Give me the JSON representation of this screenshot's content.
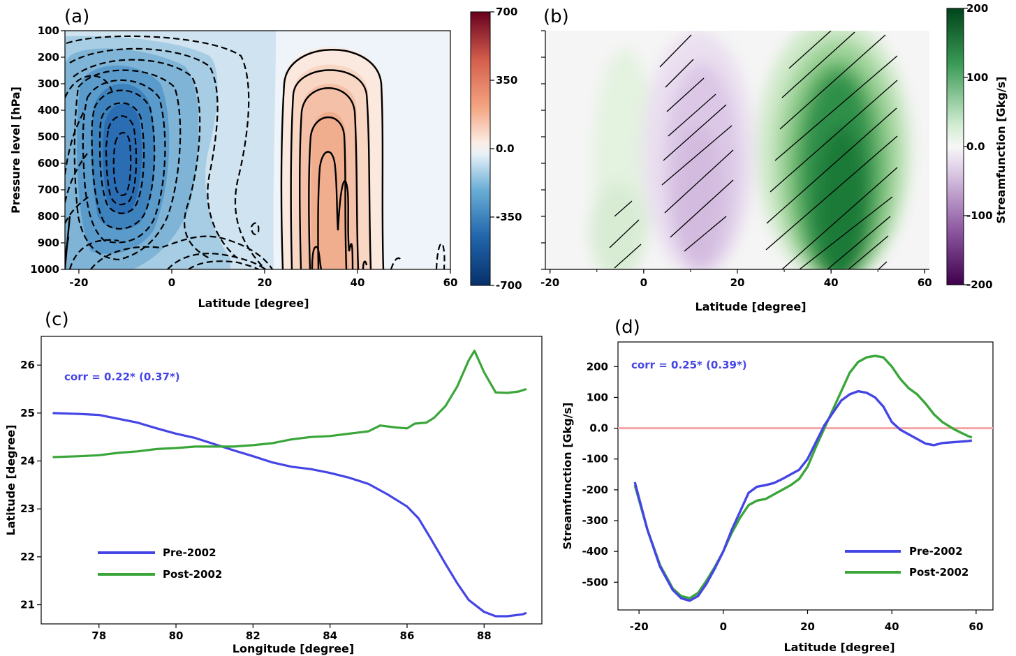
{
  "colors": {
    "pre": "#4545e6",
    "post": "#3aa63a",
    "zero_line": "#f4a6a6",
    "rdbu_neg": "#2a6db3",
    "rdbu_pos": "#e8a080",
    "prgn_pos": "#1f7a3a",
    "prgn_neg": "#7a3d8f"
  },
  "chart_data": [
    {
      "panel": "(a)",
      "type": "contour",
      "xlabel": "Latitude [degree]",
      "ylabel": "Pressure level [hPa]",
      "xlim": [
        -23,
        60
      ],
      "ylim": [
        1000,
        100
      ],
      "xticks": [
        "-20",
        "0",
        "20",
        "40",
        "60"
      ],
      "yticks": [
        "100",
        "200",
        "300",
        "400",
        "500",
        "600",
        "700",
        "800",
        "900",
        "1000"
      ],
      "colorbar": {
        "cmap": "RdBu_r",
        "range": [
          -700,
          700
        ],
        "ticks": [
          "700",
          "350",
          "0.0",
          "-350",
          "-700"
        ],
        "label": ""
      },
      "features": [
        {
          "sign": "negative",
          "center_lat": -9,
          "center_p": 600,
          "min_value": -600,
          "line_style": "dashed"
        },
        {
          "sign": "positive",
          "center_lat": 36,
          "center_p": 650,
          "max_value": 200,
          "line_style": "solid"
        }
      ]
    },
    {
      "panel": "(b)",
      "type": "contour",
      "xlabel": "Latitude [degree]",
      "ylabel": "",
      "xlim": [
        -21,
        61
      ],
      "ylim": [
        1000,
        100
      ],
      "xticks": [
        "-20",
        "0",
        "20",
        "40",
        "60"
      ],
      "colorbar": {
        "cmap": "PRGn",
        "range": [
          -200,
          200
        ],
        "ticks": [
          "200",
          "100",
          "0.0",
          "-100",
          "-200"
        ],
        "label": "Streamfunction [Gkg/s]"
      },
      "features": [
        {
          "sign": "negative",
          "center_lat": 10,
          "center_p": 550,
          "value": -30,
          "hatched": true
        },
        {
          "sign": "positive",
          "center_lat": 41,
          "center_p": 650,
          "value": 180,
          "hatched": true
        },
        {
          "sign": "positive",
          "center_lat": -3,
          "center_p": 800,
          "value": 20,
          "hatched": true
        }
      ]
    },
    {
      "panel": "(c)",
      "type": "line",
      "xlabel": "Longitude [degree]",
      "ylabel": "Latitude [degree]",
      "xlim": [
        76.5,
        89.5
      ],
      "ylim": [
        20.6,
        26.6
      ],
      "xticks": [
        "78",
        "80",
        "82",
        "84",
        "86",
        "88"
      ],
      "yticks": [
        "21",
        "22",
        "23",
        "24",
        "25",
        "26"
      ],
      "annotation": "corr = 0.22* (0.37*)",
      "legend_position": "lower-left",
      "series": [
        {
          "name": "Pre-2002",
          "x": [
            76.8,
            77.5,
            78.0,
            78.5,
            79.0,
            79.5,
            80.0,
            80.5,
            81.0,
            81.5,
            82.0,
            82.5,
            83.0,
            83.5,
            84.0,
            84.5,
            85.0,
            85.5,
            86.0,
            86.3,
            86.6,
            87.0,
            87.3,
            87.6,
            88.0,
            88.3,
            88.6,
            89.0,
            89.1
          ],
          "y": [
            25.0,
            24.98,
            24.96,
            24.88,
            24.8,
            24.68,
            24.57,
            24.48,
            24.35,
            24.22,
            24.1,
            23.97,
            23.88,
            23.83,
            23.75,
            23.65,
            23.52,
            23.3,
            23.05,
            22.8,
            22.4,
            21.85,
            21.45,
            21.1,
            20.85,
            20.76,
            20.76,
            20.8,
            20.83
          ]
        },
        {
          "name": "Post-2002",
          "x": [
            76.8,
            77.5,
            78.0,
            78.5,
            79.0,
            79.5,
            80.0,
            80.5,
            81.0,
            81.5,
            82.0,
            82.5,
            83.0,
            83.5,
            84.0,
            84.5,
            85.0,
            85.3,
            85.7,
            86.0,
            86.2,
            86.5,
            86.7,
            87.0,
            87.3,
            87.6,
            87.75,
            88.0,
            88.3,
            88.6,
            88.9,
            89.1
          ],
          "y": [
            24.08,
            24.1,
            24.12,
            24.17,
            24.2,
            24.25,
            24.27,
            24.3,
            24.3,
            24.3,
            24.33,
            24.37,
            24.45,
            24.5,
            24.52,
            24.57,
            24.62,
            24.74,
            24.7,
            24.68,
            24.78,
            24.8,
            24.9,
            25.15,
            25.55,
            26.1,
            26.3,
            25.85,
            25.43,
            25.42,
            25.45,
            25.5
          ]
        }
      ]
    },
    {
      "panel": "(d)",
      "type": "line",
      "xlabel": "Latitude [degree]",
      "ylabel": "Streamfunction [Gkg/s]",
      "xlim": [
        -25,
        64
      ],
      "ylim": [
        -590,
        280
      ],
      "xticks": [
        "-20",
        "0",
        "20",
        "40",
        "60"
      ],
      "yticks": [
        "200",
        "100",
        "0.0",
        "-100",
        "-200",
        "-300",
        "-400",
        "-500"
      ],
      "annotation": "corr = 0.25* (0.39*)",
      "legend_position": "lower-right",
      "reference_line": 0,
      "series": [
        {
          "name": "Pre-2002",
          "x": [
            -21,
            -18,
            -15,
            -12,
            -10,
            -8,
            -6,
            -4,
            -2,
            0,
            2,
            4,
            6,
            8,
            10,
            12,
            14,
            16,
            18,
            20,
            22,
            24,
            26,
            28,
            30,
            32,
            34,
            36,
            38,
            40,
            42,
            44,
            46,
            48,
            50,
            52,
            55,
            58,
            59
          ],
          "y": [
            -175,
            -330,
            -450,
            -525,
            -552,
            -560,
            -545,
            -505,
            -455,
            -400,
            -330,
            -270,
            -210,
            -190,
            -185,
            -178,
            -165,
            -150,
            -135,
            -100,
            -45,
            10,
            50,
            90,
            110,
            120,
            115,
            100,
            70,
            20,
            -5,
            -20,
            -35,
            -50,
            -55,
            -48,
            -45,
            -42,
            -40
          ]
        },
        {
          "name": "Post-2002",
          "x": [
            -21,
            -18,
            -15,
            -12,
            -10,
            -8,
            -6,
            -4,
            -2,
            0,
            2,
            4,
            6,
            8,
            10,
            12,
            14,
            16,
            18,
            20,
            22,
            24,
            26,
            28,
            30,
            32,
            34,
            36,
            38,
            40,
            42,
            44,
            46,
            48,
            50,
            52,
            55,
            58,
            59
          ],
          "y": [
            -185,
            -330,
            -445,
            -520,
            -545,
            -552,
            -535,
            -495,
            -450,
            -400,
            -340,
            -290,
            -250,
            -235,
            -230,
            -215,
            -200,
            -185,
            -165,
            -125,
            -60,
            0,
            60,
            120,
            180,
            215,
            230,
            235,
            230,
            200,
            160,
            130,
            110,
            80,
            45,
            20,
            -5,
            -25,
            -30
          ]
        }
      ]
    }
  ],
  "labels": {
    "a": {
      "letter": "(a)",
      "xlabel": "Latitude [degree]",
      "ylabel": "Pressure level [hPa]",
      "xticks": [
        "-20",
        "0",
        "20",
        "40",
        "60"
      ],
      "yticks": [
        "100",
        "200",
        "300",
        "400",
        "500",
        "600",
        "700",
        "800",
        "900",
        "1000"
      ],
      "cbticks": [
        "700",
        "350",
        "0.0",
        "-350",
        "-700"
      ]
    },
    "b": {
      "letter": "(b)",
      "xlabel": "Latitude [degree]",
      "xticks": [
        "-20",
        "0",
        "20",
        "40",
        "60"
      ],
      "cbticks": [
        "200",
        "100",
        "0.0",
        "-100",
        "-200"
      ],
      "cblabel": "Streamfunction [Gkg/s]"
    },
    "c": {
      "letter": "(c)",
      "xlabel": "Longitude [degree]",
      "ylabel": "Latitude [degree]",
      "annotation": "corr = 0.22* (0.37*)",
      "legend": [
        "Pre-2002",
        "Post-2002"
      ]
    },
    "d": {
      "letter": "(d)",
      "xlabel": "Latitude [degree]",
      "ylabel": "Streamfunction [Gkg/s]",
      "annotation": "corr = 0.25* (0.39*)",
      "legend": [
        "Pre-2002",
        "Post-2002"
      ]
    }
  }
}
